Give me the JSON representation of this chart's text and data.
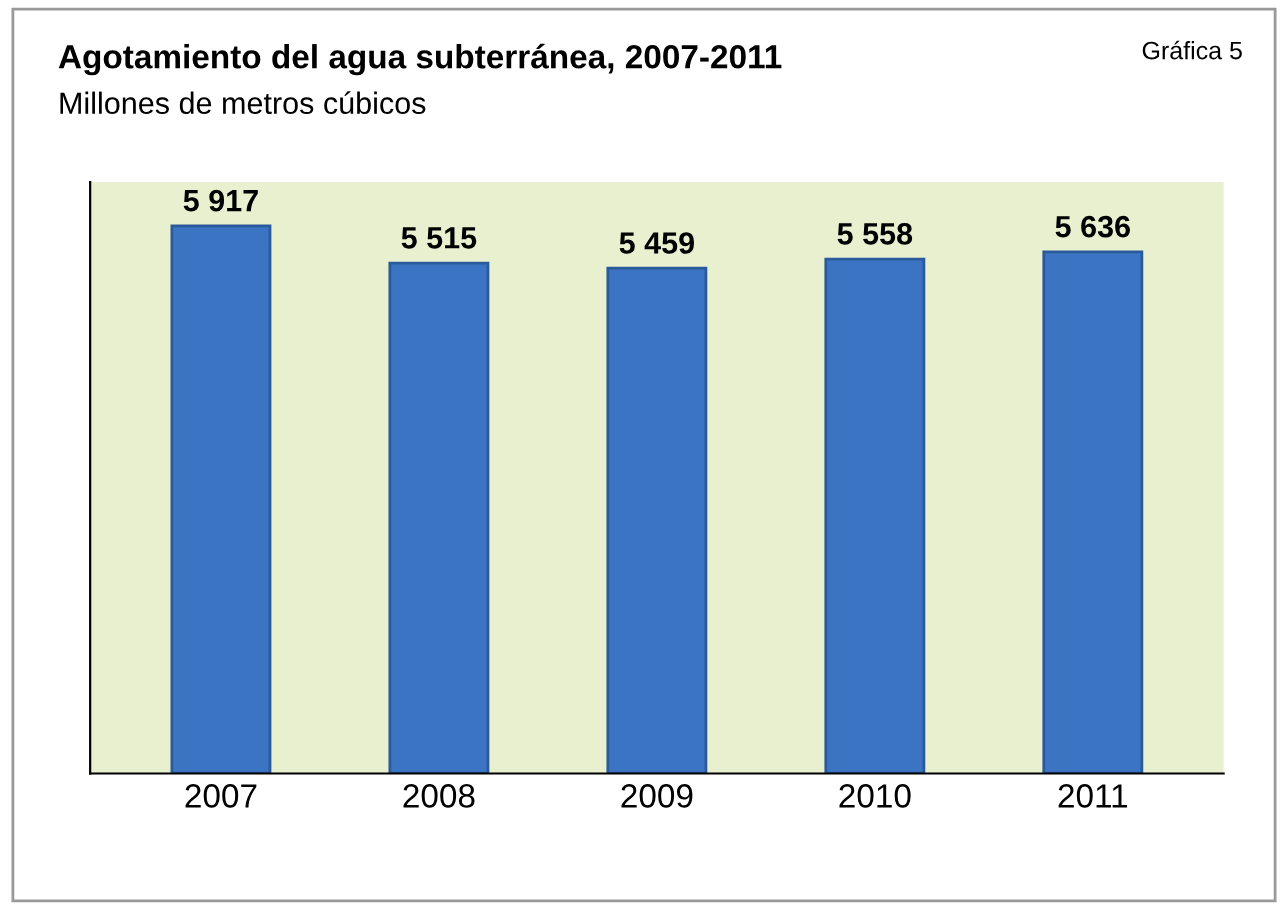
{
  "chart_data": {
    "type": "bar",
    "title": "Agotamiento del agua subterránea, 2007-2011",
    "subtitle": "Millones de metros cúbicos",
    "annotations": [
      "Gráfica 5"
    ],
    "categories": [
      "2007",
      "2008",
      "2009",
      "2010",
      "2011"
    ],
    "values": [
      5917,
      5515,
      5459,
      5558,
      5636
    ],
    "value_labels": [
      "5 917",
      "5 515",
      "5 459",
      "5 558",
      "5 636"
    ],
    "color": "#3a74c2",
    "grid": false,
    "legend": false
  }
}
